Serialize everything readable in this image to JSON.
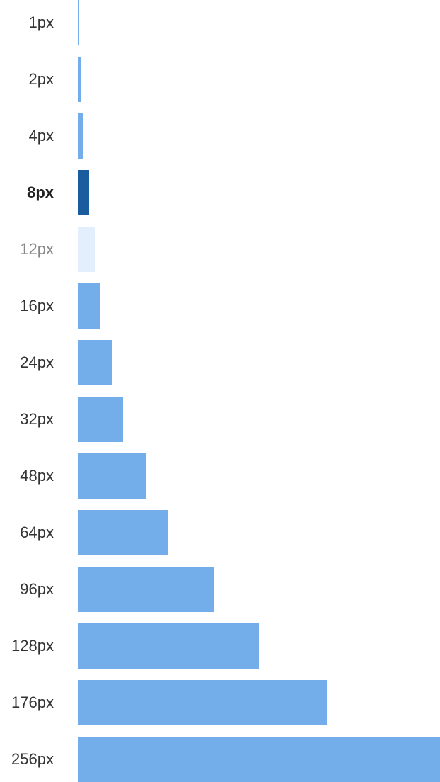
{
  "chart_data": {
    "type": "bar",
    "orientation": "horizontal",
    "title": "",
    "xlabel": "",
    "ylabel": "",
    "categories": [
      "1px",
      "2px",
      "4px",
      "8px",
      "12px",
      "16px",
      "24px",
      "32px",
      "48px",
      "64px",
      "96px",
      "128px",
      "176px",
      "256px"
    ],
    "values": [
      1,
      2,
      4,
      8,
      12,
      16,
      24,
      32,
      48,
      64,
      96,
      128,
      176,
      256
    ],
    "xlim": [
      0,
      256
    ],
    "grid": false,
    "highlight_index": 3,
    "muted_index": 4,
    "colors": {
      "bar": "#74aeea",
      "highlight": "#1a5c9e",
      "muted": "#e3effc"
    }
  }
}
